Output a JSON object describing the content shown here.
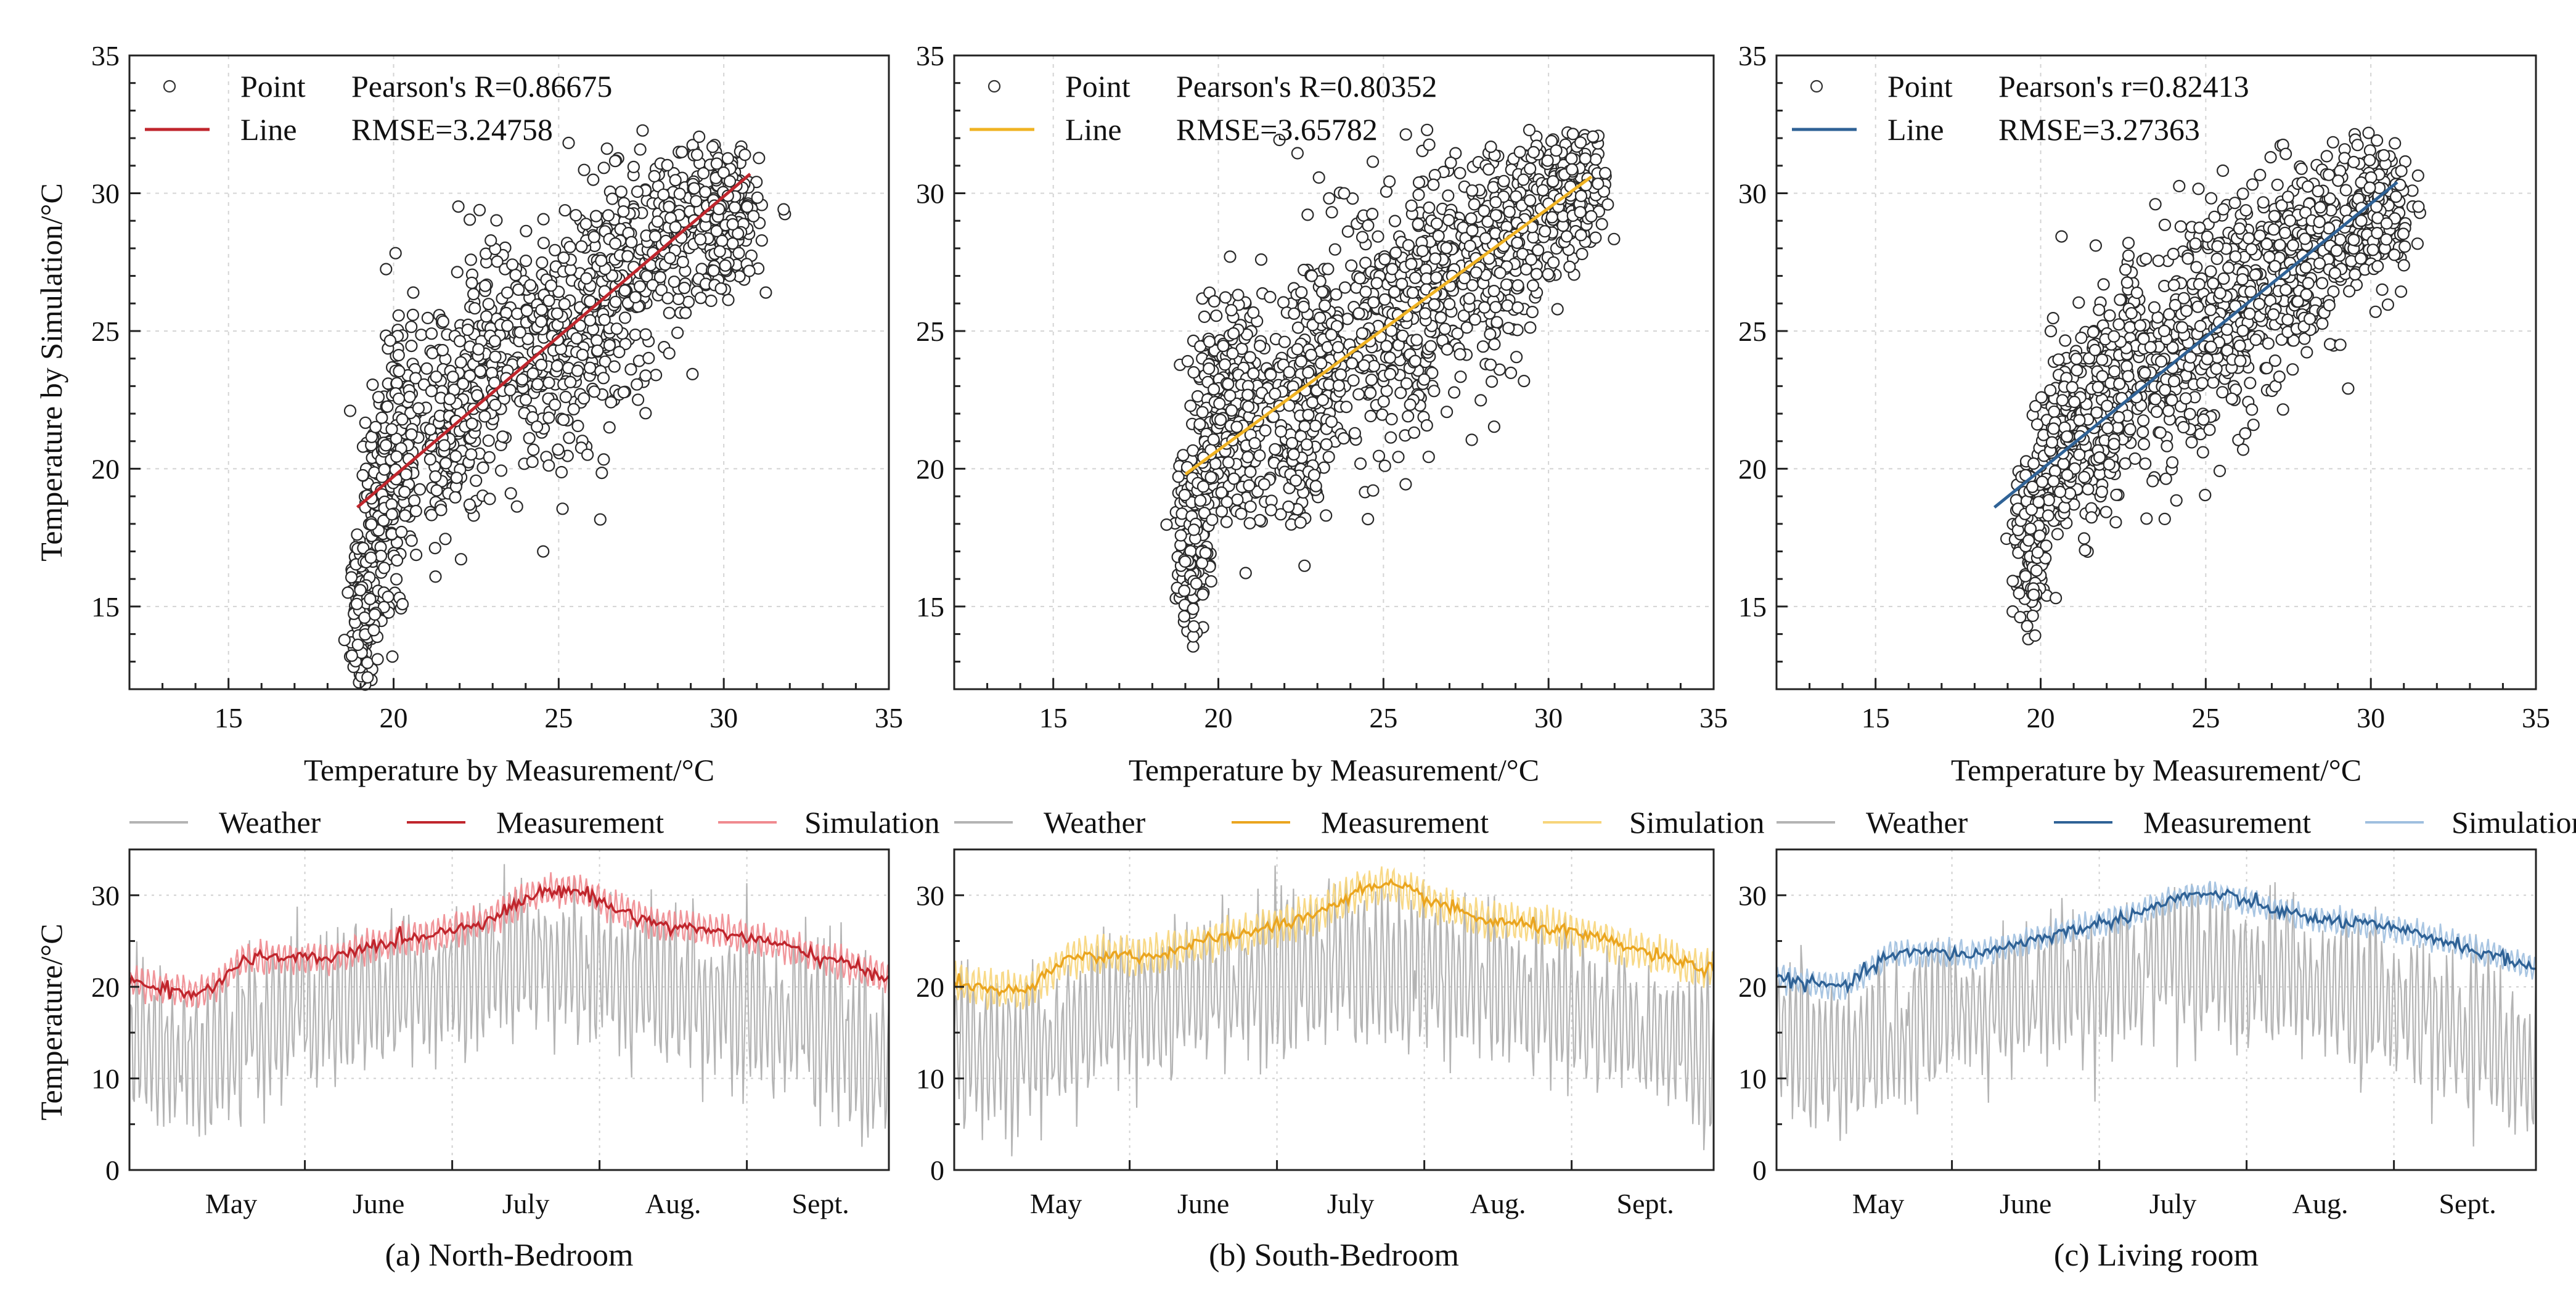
{
  "chart_data": [
    {
      "id": "a-top",
      "type": "scatter",
      "xlabel": "Temperature by Measurement/°C",
      "ylabel": "Temperature by Simulation/°C",
      "xlim": [
        12,
        35
      ],
      "ylim": [
        12,
        35
      ],
      "xticks": [
        15,
        20,
        25,
        30,
        35
      ],
      "yticks": [
        15,
        20,
        25,
        30,
        35
      ],
      "grid": true,
      "legend": [
        {
          "label": "Point",
          "marker": "circle"
        },
        {
          "label": "Line",
          "marker": "line"
        }
      ],
      "stats": [
        "Pearson's R=0.86675",
        "RMSE=3.24758"
      ],
      "fit_color": "#c0262d",
      "fit_line": {
        "x": [
          18.9,
          30.8
        ],
        "y": [
          18.6,
          30.7
        ]
      },
      "cloud": [
        {
          "x": 19.0,
          "y": 14.0,
          "sx": 0.15,
          "sy": 1.6
        },
        {
          "x": 19.5,
          "y": 18.0,
          "sx": 0.3,
          "sy": 2.5
        },
        {
          "x": 20.2,
          "y": 21.0,
          "sx": 0.35,
          "sy": 2.3
        },
        {
          "x": 21.8,
          "y": 21.5,
          "sx": 0.45,
          "sy": 1.8
        },
        {
          "x": 23.0,
          "y": 23.8,
          "sx": 0.7,
          "sy": 2.0
        },
        {
          "x": 24.8,
          "y": 24.3,
          "sx": 0.8,
          "sy": 2.2
        },
        {
          "x": 26.2,
          "y": 25.6,
          "sx": 0.8,
          "sy": 2.2
        },
        {
          "x": 27.6,
          "y": 27.8,
          "sx": 0.8,
          "sy": 1.8
        },
        {
          "x": 29.0,
          "y": 28.8,
          "sx": 0.8,
          "sy": 1.3
        },
        {
          "x": 30.2,
          "y": 29.3,
          "sx": 0.45,
          "sy": 1.4
        }
      ]
    },
    {
      "id": "b-top",
      "type": "scatter",
      "xlabel": "Temperature by Measurement/°C",
      "ylabel": "",
      "xlim": [
        12,
        35
      ],
      "ylim": [
        12,
        35
      ],
      "xticks": [
        15,
        20,
        25,
        30,
        35
      ],
      "yticks": [
        15,
        20,
        25,
        30,
        35
      ],
      "grid": true,
      "legend": [
        {
          "label": "Point",
          "marker": "circle"
        },
        {
          "label": "Line",
          "marker": "line"
        }
      ],
      "stats": [
        "Pearson's R=0.80352",
        "RMSE=3.65782"
      ],
      "fit_color": "#f0b323",
      "fit_line": {
        "x": [
          19.0,
          31.3
        ],
        "y": [
          19.8,
          30.6
        ]
      },
      "cloud": [
        {
          "x": 19.2,
          "y": 17.5,
          "sx": 0.25,
          "sy": 1.8
        },
        {
          "x": 19.9,
          "y": 21.5,
          "sx": 0.35,
          "sy": 1.9
        },
        {
          "x": 20.8,
          "y": 22.5,
          "sx": 0.4,
          "sy": 2.2
        },
        {
          "x": 22.3,
          "y": 21.5,
          "sx": 0.5,
          "sy": 2.0
        },
        {
          "x": 23.5,
          "y": 24.6,
          "sx": 0.7,
          "sy": 2.3
        },
        {
          "x": 25.0,
          "y": 25.0,
          "sx": 0.8,
          "sy": 2.4
        },
        {
          "x": 26.5,
          "y": 26.5,
          "sx": 0.8,
          "sy": 2.2
        },
        {
          "x": 28.0,
          "y": 27.7,
          "sx": 0.8,
          "sy": 2.0
        },
        {
          "x": 29.5,
          "y": 29.2,
          "sx": 0.8,
          "sy": 1.6
        },
        {
          "x": 30.8,
          "y": 30.6,
          "sx": 0.5,
          "sy": 1.3
        }
      ]
    },
    {
      "id": "c-top",
      "type": "scatter",
      "xlabel": "Temperature by Measurement/°C",
      "ylabel": "",
      "xlim": [
        12,
        35
      ],
      "ylim": [
        12,
        35
      ],
      "xticks": [
        15,
        20,
        25,
        30,
        35
      ],
      "yticks": [
        15,
        20,
        25,
        30,
        35
      ],
      "grid": true,
      "legend": [
        {
          "label": "Point",
          "marker": "circle"
        },
        {
          "label": "Line",
          "marker": "line"
        }
      ],
      "stats": [
        "Pearson's r=0.82413",
        "RMSE=3.27363"
      ],
      "fit_color": "#2f6296",
      "fit_line": {
        "x": [
          18.6,
          30.8
        ],
        "y": [
          18.6,
          30.4
        ]
      },
      "cloud": [
        {
          "x": 19.7,
          "y": 17.2,
          "sx": 0.25,
          "sy": 1.4
        },
        {
          "x": 20.5,
          "y": 20.3,
          "sx": 0.4,
          "sy": 1.8
        },
        {
          "x": 21.6,
          "y": 21.8,
          "sx": 0.5,
          "sy": 2.0
        },
        {
          "x": 23.0,
          "y": 23.8,
          "sx": 0.7,
          "sy": 2.2
        },
        {
          "x": 24.6,
          "y": 24.8,
          "sx": 0.8,
          "sy": 2.2
        },
        {
          "x": 26.0,
          "y": 26.0,
          "sx": 0.8,
          "sy": 2.1
        },
        {
          "x": 27.5,
          "y": 27.5,
          "sx": 0.8,
          "sy": 1.8
        },
        {
          "x": 29.0,
          "y": 28.8,
          "sx": 0.8,
          "sy": 1.4
        },
        {
          "x": 30.2,
          "y": 29.6,
          "sx": 0.5,
          "sy": 1.2
        }
      ]
    },
    {
      "id": "a-bottom",
      "type": "line",
      "title": "(a) North-Bedroom",
      "ylabel": "Temperature/°C",
      "ylim": [
        0,
        35
      ],
      "yticks": [
        0,
        10,
        20,
        30
      ],
      "months": [
        "May",
        "June",
        "July",
        "Aug.",
        "Sept."
      ],
      "month_centers": [
        0.67,
        1.64,
        2.61,
        3.58,
        4.55
      ],
      "xlim": [
        0,
        5.0
      ],
      "grid": true,
      "legend": [
        "Weather",
        "Measurement",
        "Simulation"
      ],
      "colors": {
        "weather": "#b4b4b4",
        "measurement": "#c0262d",
        "simulation": "#f08a8f"
      },
      "measurement_curve": {
        "x": [
          0,
          0.25,
          0.45,
          0.6,
          0.75,
          1.0,
          1.3,
          1.6,
          1.9,
          2.2,
          2.45,
          2.65,
          2.85,
          3.0,
          3.2,
          3.5,
          3.9,
          4.3,
          4.7,
          5.0
        ],
        "y": [
          20.5,
          19.8,
          19.2,
          20.5,
          23.0,
          23.2,
          23.0,
          24.5,
          25.5,
          26.5,
          28.0,
          30.0,
          30.6,
          30.3,
          28.5,
          26.8,
          26.0,
          24.5,
          22.5,
          21.0
        ]
      },
      "simulation_noise": 2.2,
      "weather_amplitude": 8.5,
      "weather_baseline": {
        "x": [
          0,
          0.3,
          0.6,
          1.0,
          1.4,
          1.8,
          2.2,
          2.6,
          3.0,
          3.4,
          3.8,
          4.2,
          4.6,
          5.0
        ],
        "y": [
          14,
          12,
          13,
          17,
          18,
          20,
          21,
          23,
          22,
          21,
          19,
          17,
          15,
          11
        ]
      }
    },
    {
      "id": "b-bottom",
      "type": "line",
      "title": "(b) South-Bedroom",
      "ylabel": "",
      "ylim": [
        0,
        35
      ],
      "yticks": [
        0,
        10,
        20,
        30
      ],
      "months": [
        "May",
        "June",
        "July",
        "Aug.",
        "Sept."
      ],
      "month_centers": [
        0.67,
        1.64,
        2.61,
        3.58,
        4.55
      ],
      "xlim": [
        0,
        5.0
      ],
      "grid": true,
      "legend": [
        "Weather",
        "Measurement",
        "Simulation"
      ],
      "colors": {
        "weather": "#b4b4b4",
        "measurement": "#eaa51f",
        "simulation": "#f7d57a"
      },
      "measurement_curve": {
        "x": [
          0,
          0.25,
          0.45,
          0.6,
          0.75,
          1.0,
          1.3,
          1.6,
          1.9,
          2.2,
          2.45,
          2.65,
          2.85,
          3.0,
          3.2,
          3.5,
          3.9,
          4.3,
          4.7,
          5.0
        ],
        "y": [
          20.5,
          19.6,
          19.5,
          21.0,
          23.2,
          23.5,
          23.3,
          24.8,
          25.8,
          27.0,
          28.5,
          30.5,
          31.0,
          30.5,
          29.0,
          27.2,
          26.5,
          25.0,
          23.0,
          21.8
        ]
      },
      "simulation_noise": 2.6,
      "weather_amplitude": 8.5,
      "weather_baseline": {
        "x": [
          0,
          0.3,
          0.6,
          1.0,
          1.4,
          1.8,
          2.2,
          2.6,
          3.0,
          3.4,
          3.8,
          4.2,
          4.6,
          5.0
        ],
        "y": [
          14,
          12,
          13,
          17,
          18,
          20,
          21,
          23,
          22,
          21,
          19,
          17,
          15,
          11
        ]
      }
    },
    {
      "id": "c-bottom",
      "type": "line",
      "title": "(c) Living room",
      "ylabel": "",
      "ylim": [
        0,
        35
      ],
      "yticks": [
        0,
        10,
        20,
        30
      ],
      "months": [
        "May",
        "June",
        "July",
        "Aug.",
        "Sept."
      ],
      "month_centers": [
        0.67,
        1.64,
        2.61,
        3.58,
        4.55
      ],
      "xlim": [
        0,
        5.0
      ],
      "grid": true,
      "legend": [
        "Weather",
        "Measurement",
        "Simulation"
      ],
      "colors": {
        "weather": "#b4b4b4",
        "measurement": "#2f6296",
        "simulation": "#9fbfdf"
      },
      "measurement_curve": {
        "x": [
          0,
          0.25,
          0.45,
          0.6,
          0.75,
          1.0,
          1.3,
          1.6,
          1.9,
          2.2,
          2.45,
          2.65,
          2.85,
          3.0,
          3.2,
          3.5,
          3.9,
          4.3,
          4.7,
          5.0
        ],
        "y": [
          21.0,
          20.3,
          20.0,
          21.8,
          23.5,
          23.8,
          23.5,
          24.8,
          26.0,
          27.2,
          28.5,
          29.8,
          30.2,
          29.8,
          28.8,
          27.5,
          26.8,
          25.5,
          23.5,
          22.0
        ]
      },
      "simulation_noise": 1.8,
      "weather_amplitude": 8.5,
      "weather_baseline": {
        "x": [
          0,
          0.3,
          0.6,
          1.0,
          1.4,
          1.8,
          2.2,
          2.6,
          3.0,
          3.4,
          3.8,
          4.2,
          4.6,
          5.0
        ],
        "y": [
          14,
          12,
          13,
          17,
          18,
          20,
          21,
          23,
          22,
          21,
          19,
          17,
          15,
          11
        ]
      }
    }
  ]
}
